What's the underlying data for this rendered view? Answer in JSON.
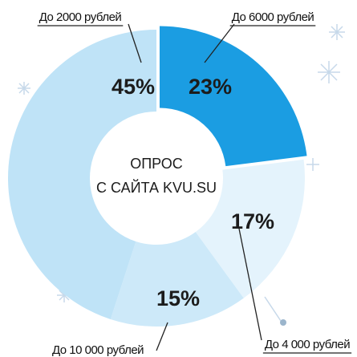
{
  "chart_data": {
    "type": "pie",
    "center_label_lines": [
      "ОПРОС",
      "С САЙТА KVU.SU"
    ],
    "categories": [
      "До 6000 рублей",
      "До 4 000 рублей",
      "До 10 000 рублей",
      "До 2000 рублей"
    ],
    "values": [
      23,
      17,
      15,
      45
    ],
    "value_labels": [
      "23%",
      "17%",
      "15%",
      "45%"
    ],
    "colors": [
      "#1b9de2",
      "#e4f3fc",
      "#cde9f9",
      "#bfe3f7"
    ]
  }
}
